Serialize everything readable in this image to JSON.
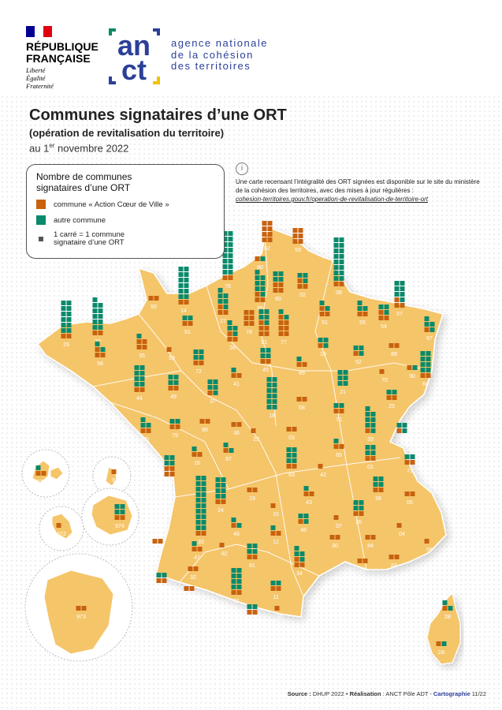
{
  "header": {
    "rf_name": "RÉPUBLIQUE\nFRANÇAISE",
    "rf_motto": "Liberté\nÉgalité\nFraternité",
    "anct_logo": "anct",
    "anct_text": "agence nationale\nde la cohésion\ndes territoires"
  },
  "title": "Communes signataires d’une ORT",
  "subtitle": "(opération de revitalisation du territoire)",
  "date_prefix": "au 1",
  "date_sup": "er",
  "date_suffix": " novembre 2022",
  "legend": {
    "title": "Nombre de communes\nsignataires d’une ORT",
    "acv_label": "commune « Action Cœur de Ville »",
    "autre_label": "autre commune",
    "unit_label": "1 carré = 1 commune signataire d’une ORT"
  },
  "info": {
    "icon": "info-icon",
    "text": "Une carte recensant l’intégralité des ORT signées est disponible sur le site du ministère de la cohésion des territoires, avec des mises à jour régulières :",
    "link": "cohesion-territoires.gouv.fr/operation-de-revitalisation-de-territoire-ort"
  },
  "footer": {
    "source_label": "Source :",
    "source": " DHUP 2022 • ",
    "realisation_label": "Réalisation",
    "realisation": " : ANCT Pôle ADT - ",
    "carto_label": "Cartographie",
    "carto_num": " 11/22"
  },
  "colors": {
    "acv": "#c8620f",
    "autre": "#0a8a6a",
    "land": "#f5c56a",
    "border": "#ffffff"
  },
  "departments": [
    {
      "code": "29",
      "acv": 2,
      "autre": 12
    },
    {
      "code": "22",
      "acv": 2,
      "autre": 11
    },
    {
      "code": "50",
      "acv": 2,
      "autre": 0
    },
    {
      "code": "14",
      "acv": 2,
      "autre": 12
    },
    {
      "code": "76",
      "acv": 2,
      "autre": 16
    },
    {
      "code": "62",
      "acv": 8,
      "autre": 0
    },
    {
      "code": "59",
      "acv": 6,
      "autre": 0
    },
    {
      "code": "80",
      "acv": 1,
      "autre": 1
    },
    {
      "code": "27",
      "acv": 3,
      "autre": 6
    },
    {
      "code": "60",
      "acv": 4,
      "autre": 4
    },
    {
      "code": "02",
      "acv": 3,
      "autre": 3
    },
    {
      "code": "08",
      "acv": 2,
      "autre": 16
    },
    {
      "code": "95",
      "acv": 3,
      "autre": 8
    },
    {
      "code": "78",
      "acv": 6,
      "autre": 0
    },
    {
      "code": "61",
      "acv": 2,
      "autre": 2
    },
    {
      "code": "35",
      "acv": 4,
      "autre": 1
    },
    {
      "code": "53",
      "acv": 1,
      "autre": 0
    },
    {
      "code": "72",
      "acv": 2,
      "autre": 4
    },
    {
      "code": "56",
      "acv": 3,
      "autre": 2
    },
    {
      "code": "28",
      "acv": 3,
      "autre": 4
    },
    {
      "code": "91",
      "acv": 5,
      "autre": 5
    },
    {
      "code": "77",
      "acv": 7,
      "autre": 2
    },
    {
      "code": "51",
      "acv": 3,
      "autre": 2
    },
    {
      "code": "55",
      "acv": 2,
      "autre": 3
    },
    {
      "code": "54",
      "acv": 3,
      "autre": 3
    },
    {
      "code": "57",
      "acv": 3,
      "autre": 7
    },
    {
      "code": "67",
      "acv": 1,
      "autre": 4
    },
    {
      "code": "10",
      "acv": 1,
      "autre": 3
    },
    {
      "code": "52",
      "acv": 1,
      "autre": 3
    },
    {
      "code": "88",
      "acv": 2,
      "autre": 0
    },
    {
      "code": "68",
      "acv": 2,
      "autre": 8
    },
    {
      "code": "45",
      "acv": 2,
      "autre": 4
    },
    {
      "code": "89",
      "acv": 2,
      "autre": 1
    },
    {
      "code": "44",
      "acv": 2,
      "autre": 8
    },
    {
      "code": "49",
      "acv": 2,
      "autre": 4
    },
    {
      "code": "37",
      "acv": 1,
      "autre": 5
    },
    {
      "code": "41",
      "acv": 2,
      "autre": 1
    },
    {
      "code": "18",
      "acv": 0,
      "autre": 12
    },
    {
      "code": "58",
      "acv": 2,
      "autre": 0
    },
    {
      "code": "21",
      "acv": 0,
      "autre": 6
    },
    {
      "code": "70",
      "acv": 1,
      "autre": 0
    },
    {
      "code": "90",
      "acv": 1,
      "autre": 1
    },
    {
      "code": "25",
      "acv": 2,
      "autre": 2
    },
    {
      "code": "85",
      "acv": 2,
      "autre": 3
    },
    {
      "code": "79",
      "acv": 2,
      "autre": 2
    },
    {
      "code": "86",
      "acv": 2,
      "autre": 0
    },
    {
      "code": "36",
      "acv": 2,
      "autre": 0
    },
    {
      "code": "71",
      "acv": 2,
      "autre": 2
    },
    {
      "code": "39",
      "acv": 1,
      "autre": 8
    },
    {
      "code": "01",
      "acv": 2,
      "autre": 4
    },
    {
      "code": "74",
      "acv": 1,
      "autre": 3
    },
    {
      "code": "17",
      "acv": 4,
      "autre": 4
    },
    {
      "code": "16",
      "acv": 2,
      "autre": 1
    },
    {
      "code": "87",
      "acv": 1,
      "autre": 2
    },
    {
      "code": "23",
      "acv": 1,
      "autre": 0
    },
    {
      "code": "03",
      "acv": 2,
      "autre": 0
    },
    {
      "code": "63",
      "acv": 2,
      "autre": 6
    },
    {
      "code": "69",
      "acv": 2,
      "autre": 1
    },
    {
      "code": "42",
      "acv": 1,
      "autre": 0
    },
    {
      "code": "73",
      "acv": 2,
      "autre": 2
    },
    {
      "code": "38",
      "acv": 2,
      "autre": 4
    },
    {
      "code": "33",
      "acv": 2,
      "autre": 20
    },
    {
      "code": "24",
      "acv": 2,
      "autre": 8
    },
    {
      "code": "19",
      "acv": 2,
      "autre": 0
    },
    {
      "code": "15",
      "acv": 1,
      "autre": 0
    },
    {
      "code": "43",
      "acv": 2,
      "autre": 1
    },
    {
      "code": "26",
      "acv": 2,
      "autre": 4
    },
    {
      "code": "07",
      "acv": 1,
      "autre": 0
    },
    {
      "code": "05",
      "acv": 2,
      "autre": 0
    },
    {
      "code": "04",
      "acv": 1,
      "autre": 0
    },
    {
      "code": "06",
      "acv": 1,
      "autre": 0
    },
    {
      "code": "40",
      "acv": 2,
      "autre": 0
    },
    {
      "code": "47",
      "acv": 2,
      "autre": 1
    },
    {
      "code": "46",
      "acv": 1,
      "autre": 2
    },
    {
      "code": "12",
      "acv": 2,
      "autre": 1
    },
    {
      "code": "48",
      "acv": 1,
      "autre": 3
    },
    {
      "code": "30",
      "acv": 2,
      "autre": 0
    },
    {
      "code": "84",
      "acv": 2,
      "autre": 0
    },
    {
      "code": "13",
      "acv": 2,
      "autre": 0
    },
    {
      "code": "83",
      "acv": 2,
      "autre": 0
    },
    {
      "code": "34",
      "acv": 3,
      "autre": 4
    },
    {
      "code": "81",
      "acv": 2,
      "autre": 4
    },
    {
      "code": "82",
      "acv": 1,
      "autre": 0
    },
    {
      "code": "32",
      "acv": 2,
      "autre": 0
    },
    {
      "code": "31",
      "acv": 2,
      "autre": 8
    },
    {
      "code": "64",
      "acv": 2,
      "autre": 2
    },
    {
      "code": "65",
      "acv": 2,
      "autre": 0
    },
    {
      "code": "09",
      "acv": 2,
      "autre": 2
    },
    {
      "code": "11",
      "acv": 2,
      "autre": 2
    },
    {
      "code": "66",
      "acv": 1,
      "autre": 0
    },
    {
      "code": "2B",
      "acv": 1,
      "autre": 2
    },
    {
      "code": "2A",
      "acv": 1,
      "autre": 1
    },
    {
      "code": "971",
      "acv": 2,
      "autre": 1
    },
    {
      "code": "972",
      "acv": 1,
      "autre": 0
    },
    {
      "code": "973",
      "acv": 2,
      "autre": 0
    },
    {
      "code": "974",
      "acv": 2,
      "autre": 4
    },
    {
      "code": "976",
      "acv": 1,
      "autre": 0
    }
  ]
}
